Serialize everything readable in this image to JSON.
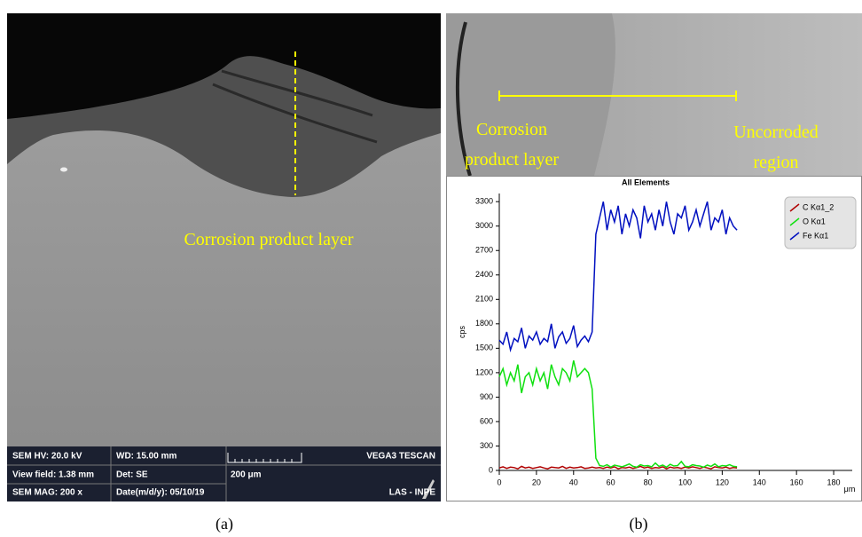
{
  "panels": {
    "a": {
      "label": "(a)",
      "annotation": "Corrosion product layer",
      "info": [
        [
          "SEM HV: 20.0 kV",
          "WD: 15.00 mm",
          "VEGA3 TESCAN"
        ],
        [
          "View field: 1.38 mm",
          "Det: SE",
          "200 μm"
        ],
        [
          "SEM MAG: 200 x",
          "Date(m/d/y): 05/10/19",
          "LAS - INPE"
        ]
      ]
    },
    "b": {
      "label": "(b)",
      "annotations": [
        [
          "Corrosion",
          "product layer"
        ],
        [
          "Uncorroded",
          "region"
        ]
      ]
    }
  },
  "chart_data": {
    "type": "line",
    "title": "All Elements",
    "x_label": "μm",
    "y_label": "cps",
    "x": [
      0,
      2,
      4,
      6,
      8,
      10,
      12,
      14,
      16,
      18,
      20,
      22,
      24,
      26,
      28,
      30,
      32,
      34,
      36,
      38,
      40,
      42,
      44,
      46,
      48,
      50,
      52,
      54,
      56,
      58,
      60,
      62,
      64,
      66,
      68,
      70,
      72,
      74,
      76,
      78,
      80,
      82,
      84,
      86,
      88,
      90,
      92,
      94,
      96,
      98,
      100,
      102,
      104,
      106,
      108,
      110,
      112,
      114,
      116,
      118,
      120,
      122,
      124,
      126,
      128
    ],
    "series": [
      {
        "name": "C Kα1_2",
        "color": "#b00000",
        "values": [
          30,
          45,
          25,
          40,
          35,
          20,
          50,
          30,
          40,
          25,
          35,
          45,
          30,
          20,
          40,
          35,
          30,
          50,
          25,
          40,
          30,
          35,
          45,
          25,
          30,
          40,
          30,
          35,
          25,
          40,
          30,
          45,
          20,
          35,
          30,
          40,
          25,
          35,
          50,
          30,
          40,
          25,
          35,
          30,
          45,
          20,
          40,
          30,
          35,
          25,
          40,
          30,
          45,
          35,
          25,
          40,
          30,
          20,
          45,
          35,
          30,
          40,
          25,
          35,
          30
        ]
      },
      {
        "name": "O Kα1",
        "color": "#10e010",
        "values": [
          1150,
          1250,
          1050,
          1200,
          1100,
          1300,
          950,
          1150,
          1200,
          1050,
          1250,
          1100,
          1200,
          1000,
          1300,
          1150,
          1050,
          1250,
          1200,
          1100,
          1350,
          1150,
          1200,
          1250,
          1200,
          1000,
          150,
          60,
          50,
          70,
          40,
          65,
          55,
          45,
          60,
          80,
          50,
          40,
          70,
          55,
          60,
          45,
          90,
          50,
          65,
          40,
          75,
          55,
          60,
          110,
          50,
          45,
          70,
          60,
          55,
          40,
          65,
          50,
          80,
          45,
          60,
          55,
          70,
          50,
          45
        ]
      },
      {
        "name": "Fe Kα1",
        "color": "#0010c0",
        "values": [
          1600,
          1550,
          1700,
          1480,
          1620,
          1580,
          1750,
          1500,
          1650,
          1600,
          1700,
          1550,
          1620,
          1580,
          1800,
          1500,
          1640,
          1700,
          1560,
          1620,
          1780,
          1520,
          1600,
          1650,
          1580,
          1700,
          2900,
          3100,
          3300,
          2950,
          3200,
          3050,
          3250,
          2900,
          3150,
          3000,
          3200,
          3100,
          2850,
          3250,
          3050,
          3150,
          2950,
          3200,
          3000,
          3300,
          3050,
          2900,
          3150,
          3100,
          3250,
          2950,
          3050,
          3200,
          3000,
          3150,
          3300,
          2950,
          3100,
          3050,
          3200,
          2900,
          3100,
          3000,
          2950
        ]
      }
    ],
    "xlim": [
      0,
      190
    ],
    "xticks": [
      0,
      20,
      40,
      60,
      80,
      100,
      120,
      140,
      160,
      180
    ],
    "ylim": [
      0,
      3400
    ],
    "yticks": [
      0,
      300,
      600,
      900,
      1200,
      1500,
      1800,
      2100,
      2400,
      2700,
      3000,
      3300
    ],
    "legend": "top-right"
  }
}
